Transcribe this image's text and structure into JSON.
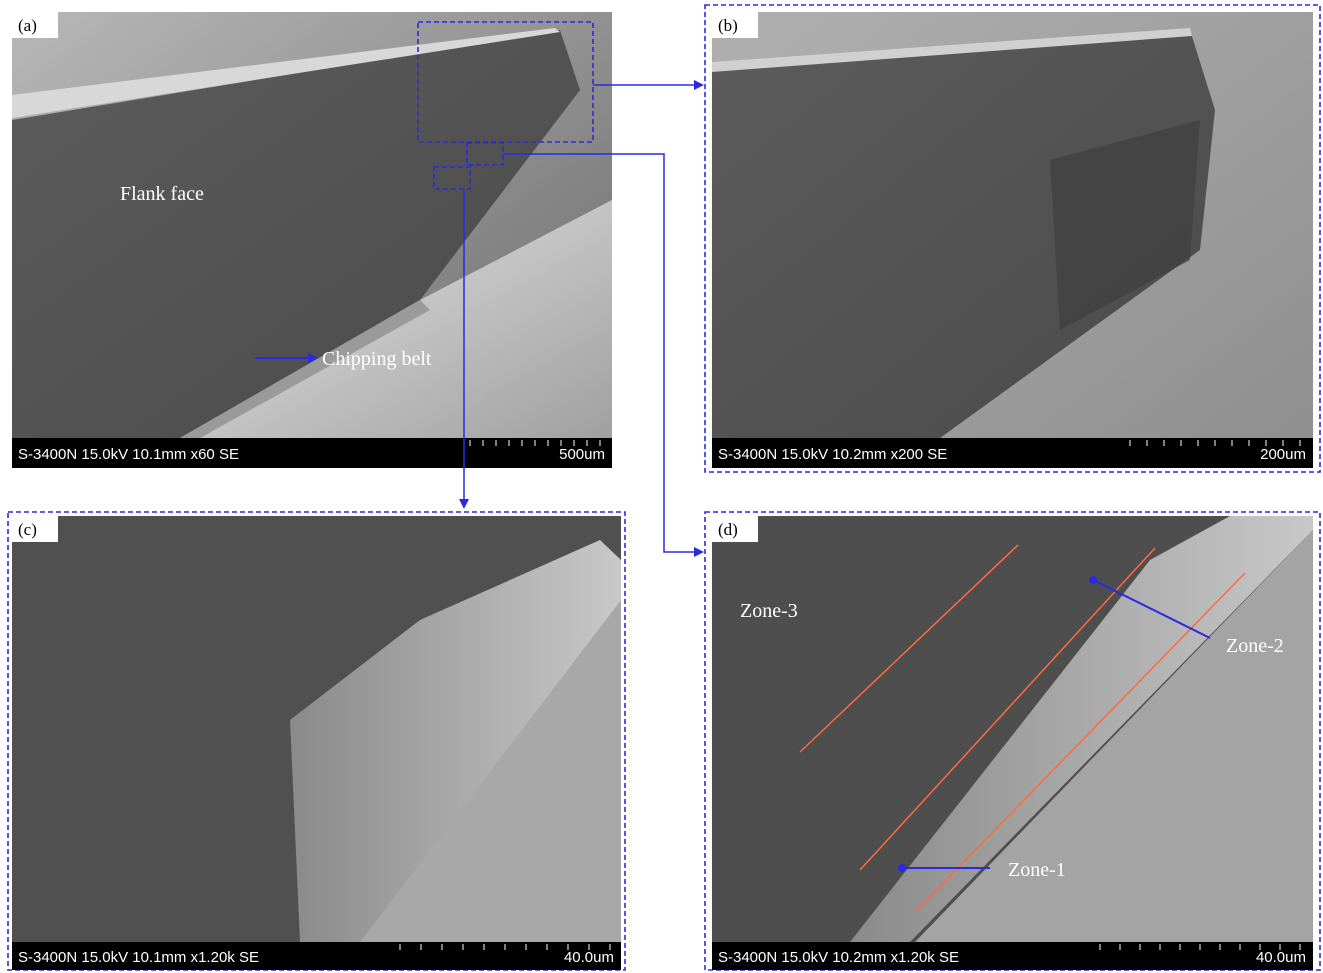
{
  "panels": [
    {
      "label": "(a)",
      "info": "S-3400N 15.0kV 10.1mm x60 SE",
      "scale": "500um",
      "annotations": [
        "Flank face",
        "Chipping belt"
      ]
    },
    {
      "label": "(b)",
      "info": "S-3400N 15.0kV 10.2mm x200 SE",
      "scale": "200um",
      "annotations": []
    },
    {
      "label": "(c)",
      "info": "S-3400N 15.0kV 10.1mm x1.20k SE",
      "scale": "40.0um",
      "annotations": []
    },
    {
      "label": "(d)",
      "info": "S-3400N 15.0kV 10.2mm x1.20k SE",
      "scale": "40.0um",
      "annotations": [
        "Zone-3",
        "Zone-2",
        "Zone-1"
      ]
    }
  ]
}
